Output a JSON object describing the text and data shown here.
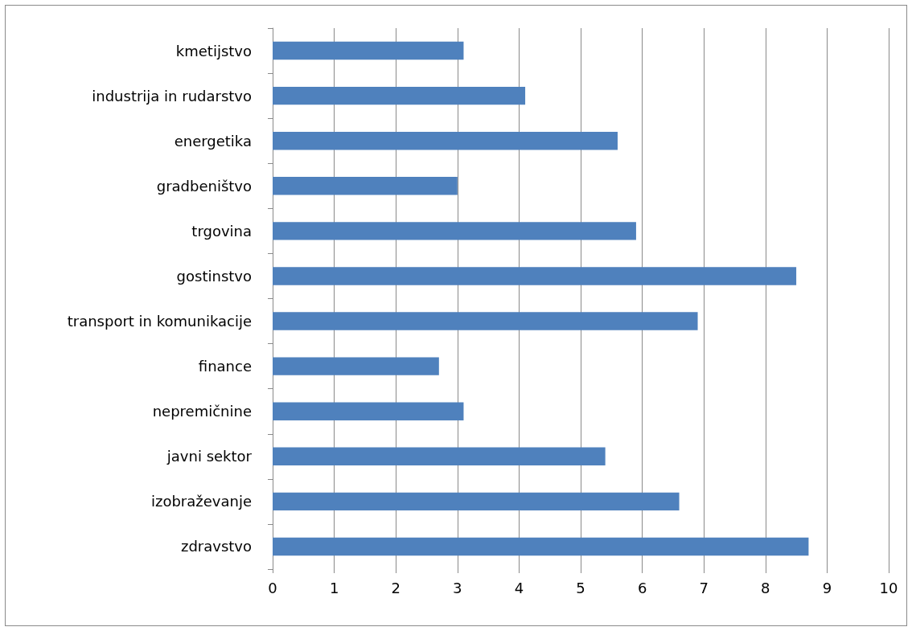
{
  "chart_data": {
    "type": "bar",
    "orientation": "horizontal",
    "categories": [
      "kmetijstvo",
      "industrija in rudarstvo",
      "energetika",
      "gradbeništvo",
      "trgovina",
      "gostinstvo",
      "transport in komunikacije",
      "finance",
      "nepremičnine",
      "javni sektor",
      "izobraževanje",
      "zdravstvo"
    ],
    "values": [
      3.1,
      4.1,
      5.6,
      3.0,
      5.9,
      8.5,
      6.9,
      2.7,
      3.1,
      5.4,
      6.6,
      8.7
    ],
    "color": "#4f81bd",
    "xlim": [
      0,
      10
    ],
    "xticks": [
      0,
      1,
      2,
      3,
      4,
      5,
      6,
      7,
      8,
      9,
      10
    ],
    "grid": "x"
  }
}
